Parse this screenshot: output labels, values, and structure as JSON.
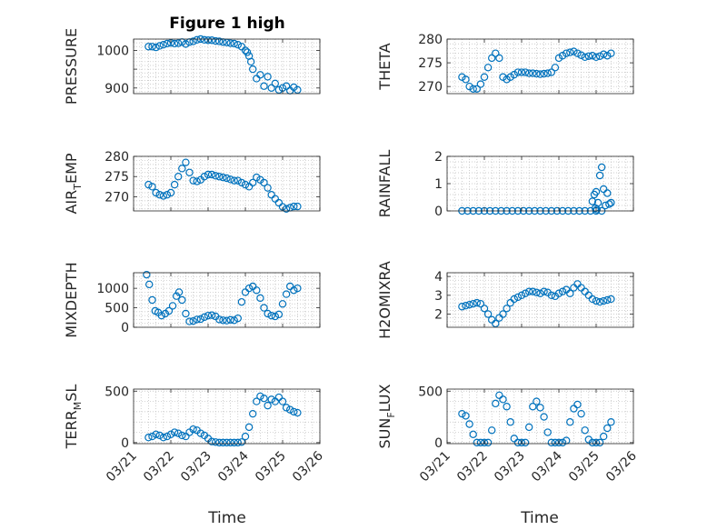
{
  "figure_title": "Figure 1 high",
  "colors": {
    "marker": "#0072BD",
    "axis": "#262626",
    "grid": "#bdbdbd"
  },
  "chart_data": [
    {
      "type": "scatter",
      "ylabel": "PRESSURE",
      "ylim": [
        885,
        1030
      ],
      "yticks": [
        900,
        950,
        1000
      ],
      "ytick_labels": [
        "900",
        "",
        "1000"
      ],
      "xlim": [
        0,
        5
      ],
      "xticks": [
        0,
        1,
        2,
        3,
        4,
        5
      ],
      "grid": true,
      "x": [
        0.4,
        0.5,
        0.6,
        0.7,
        0.8,
        0.9,
        1.0,
        1.1,
        1.2,
        1.3,
        1.4,
        1.5,
        1.6,
        1.7,
        1.8,
        1.9,
        2.0,
        2.1,
        2.2,
        2.3,
        2.4,
        2.5,
        2.6,
        2.7,
        2.8,
        2.9,
        3.0,
        3.05,
        3.1,
        3.15,
        3.2,
        3.3,
        3.4,
        3.5,
        3.6,
        3.7,
        3.8,
        3.9,
        4.0,
        4.1,
        4.2,
        4.3,
        4.4
      ],
      "y": [
        1010,
        1010,
        1008,
        1012,
        1015,
        1018,
        1020,
        1018,
        1019,
        1022,
        1017,
        1022,
        1024,
        1028,
        1030,
        1028,
        1027,
        1027,
        1025,
        1024,
        1022,
        1021,
        1019,
        1018,
        1015,
        1010,
        1000,
        995,
        985,
        970,
        950,
        925,
        935,
        905,
        930,
        900,
        912,
        895,
        900,
        905,
        893,
        902,
        895
      ]
    },
    {
      "type": "scatter",
      "ylabel": "THETA",
      "ylim": [
        268.5,
        280
      ],
      "yticks": [
        270,
        275,
        280
      ],
      "ytick_labels": [
        "270",
        "275",
        "280"
      ],
      "xlim": [
        0,
        5
      ],
      "xticks": [
        0,
        1,
        2,
        3,
        4,
        5
      ],
      "grid": true,
      "x": [
        0.4,
        0.5,
        0.6,
        0.7,
        0.8,
        0.9,
        1.0,
        1.1,
        1.2,
        1.3,
        1.4,
        1.5,
        1.6,
        1.7,
        1.8,
        1.9,
        2.0,
        2.1,
        2.2,
        2.3,
        2.4,
        2.5,
        2.6,
        2.7,
        2.8,
        2.9,
        3.0,
        3.1,
        3.2,
        3.3,
        3.4,
        3.5,
        3.6,
        3.7,
        3.8,
        3.9,
        4.0,
        4.1,
        4.2,
        4.3,
        4.4
      ],
      "y": [
        272,
        271.5,
        270,
        269.5,
        269.5,
        270.5,
        272,
        274,
        276,
        277,
        276,
        272,
        271.5,
        272,
        272.5,
        273,
        273,
        273,
        272.8,
        272.8,
        272.7,
        272.6,
        272.7,
        272.8,
        273,
        274,
        276,
        276.5,
        277,
        277.2,
        277.4,
        277,
        276.6,
        276.2,
        276.4,
        276.5,
        276.2,
        276.4,
        276.8,
        276.5,
        277
      ]
    },
    {
      "type": "scatter",
      "ylabel": "AIR_TEMP",
      "ylim": [
        266.5,
        280
      ],
      "yticks": [
        270,
        275,
        280
      ],
      "ytick_labels": [
        "270",
        "275",
        "280"
      ],
      "xlim": [
        0,
        5
      ],
      "xticks": [
        0,
        1,
        2,
        3,
        4,
        5
      ],
      "grid": true,
      "x": [
        0.4,
        0.5,
        0.6,
        0.7,
        0.8,
        0.9,
        1.0,
        1.1,
        1.2,
        1.3,
        1.4,
        1.5,
        1.6,
        1.7,
        1.8,
        1.9,
        2.0,
        2.1,
        2.2,
        2.3,
        2.4,
        2.5,
        2.6,
        2.7,
        2.8,
        2.9,
        3.0,
        3.1,
        3.2,
        3.3,
        3.4,
        3.5,
        3.6,
        3.7,
        3.8,
        3.9,
        4.0,
        4.1,
        4.2,
        4.3,
        4.4
      ],
      "y": [
        273,
        272.5,
        271,
        270.5,
        270.2,
        270.5,
        271,
        273,
        275,
        277,
        278.5,
        276,
        274,
        273.8,
        274.2,
        275,
        275.5,
        275.5,
        275.2,
        275,
        274.8,
        274.6,
        274.3,
        274,
        274,
        273.5,
        273,
        272.5,
        273.5,
        274.8,
        274.2,
        273.5,
        272.2,
        270.5,
        269.5,
        268.5,
        267.5,
        267,
        267.3,
        267.6,
        267.6
      ]
    },
    {
      "type": "scatter",
      "ylabel": "RAINFALL",
      "ylim": [
        0,
        2
      ],
      "yticks": [
        0,
        1,
        2
      ],
      "ytick_labels": [
        "0",
        "1",
        "2"
      ],
      "xlim": [
        0,
        5
      ],
      "xticks": [
        0,
        1,
        2,
        3,
        4,
        5
      ],
      "grid": true,
      "x": [
        0.4,
        0.55,
        0.7,
        0.85,
        1.0,
        1.15,
        1.3,
        1.45,
        1.6,
        1.75,
        1.9,
        2.05,
        2.2,
        2.35,
        2.5,
        2.65,
        2.8,
        2.95,
        3.1,
        3.25,
        3.4,
        3.55,
        3.7,
        3.85,
        4.0,
        4.15,
        3.9,
        3.95,
        4.0,
        4.05,
        4.1,
        4.15,
        4.2,
        4.25,
        4.3,
        4.35,
        4.4,
        3.98,
        4.02
      ],
      "y": [
        0,
        0,
        0,
        0,
        0,
        0,
        0,
        0,
        0,
        0,
        0,
        0,
        0,
        0,
        0,
        0,
        0,
        0,
        0,
        0,
        0,
        0,
        0,
        0,
        0,
        0,
        0.35,
        0.6,
        0.7,
        0.3,
        1.3,
        1.6,
        0.8,
        0.2,
        0.65,
        0.25,
        0.3,
        0.1,
        0.05
      ]
    },
    {
      "type": "scatter",
      "ylabel": "MIXDEPTH",
      "ylim": [
        0,
        1400
      ],
      "yticks": [
        0,
        500,
        1000
      ],
      "ytick_labels": [
        "0",
        "500",
        "1000"
      ],
      "xlim": [
        0,
        5
      ],
      "xticks": [
        0,
        1,
        2,
        3,
        4,
        5
      ],
      "grid": true,
      "x": [
        0.35,
        0.42,
        0.5,
        0.58,
        0.66,
        0.75,
        0.85,
        0.95,
        1.05,
        1.15,
        1.22,
        1.3,
        1.4,
        1.5,
        1.6,
        1.7,
        1.8,
        1.9,
        2.0,
        2.1,
        2.2,
        2.3,
        2.4,
        2.5,
        2.6,
        2.7,
        2.8,
        2.9,
        3.0,
        3.1,
        3.2,
        3.3,
        3.4,
        3.5,
        3.6,
        3.7,
        3.8,
        3.9,
        4.0,
        4.1,
        4.2,
        4.3,
        4.4
      ],
      "y": [
        1350,
        1100,
        700,
        420,
        380,
        300,
        350,
        420,
        550,
        800,
        900,
        700,
        350,
        150,
        160,
        200,
        210,
        260,
        300,
        310,
        280,
        200,
        180,
        170,
        190,
        180,
        230,
        650,
        900,
        1000,
        1050,
        950,
        750,
        500,
        350,
        300,
        280,
        330,
        600,
        850,
        1050,
        950,
        1000
      ]
    },
    {
      "type": "scatter",
      "ylabel": "H2OMIXRA",
      "ylim": [
        1.3,
        4.2
      ],
      "yticks": [
        2,
        3,
        4
      ],
      "ytick_labels": [
        "2",
        "3",
        "4"
      ],
      "xlim": [
        0,
        5
      ],
      "xticks": [
        0,
        1,
        2,
        3,
        4,
        5
      ],
      "grid": true,
      "x": [
        0.4,
        0.5,
        0.6,
        0.7,
        0.8,
        0.9,
        1.0,
        1.1,
        1.2,
        1.3,
        1.4,
        1.5,
        1.6,
        1.7,
        1.8,
        1.9,
        2.0,
        2.1,
        2.2,
        2.3,
        2.4,
        2.5,
        2.6,
        2.7,
        2.8,
        2.9,
        3.0,
        3.1,
        3.2,
        3.3,
        3.4,
        3.5,
        3.6,
        3.7,
        3.8,
        3.9,
        4.0,
        4.1,
        4.2,
        4.3,
        4.4
      ],
      "y": [
        2.4,
        2.45,
        2.5,
        2.55,
        2.6,
        2.55,
        2.3,
        2.0,
        1.7,
        1.5,
        1.8,
        2.0,
        2.3,
        2.6,
        2.8,
        2.9,
        3.0,
        3.1,
        3.2,
        3.2,
        3.15,
        3.1,
        3.2,
        3.15,
        3.0,
        2.95,
        3.1,
        3.2,
        3.3,
        3.1,
        3.4,
        3.6,
        3.4,
        3.2,
        3.0,
        2.8,
        2.7,
        2.65,
        2.7,
        2.75,
        2.8
      ]
    },
    {
      "type": "scatter",
      "ylabel": "TERR_MSL",
      "ylim": [
        -10,
        520
      ],
      "yticks": [
        0,
        500
      ],
      "ytick_labels": [
        "0",
        "500"
      ],
      "xlim": [
        0,
        5
      ],
      "xticks": [
        0,
        1,
        2,
        3,
        4,
        5
      ],
      "grid": true,
      "x": [
        0.4,
        0.5,
        0.6,
        0.7,
        0.8,
        0.9,
        1.0,
        1.1,
        1.2,
        1.3,
        1.4,
        1.5,
        1.6,
        1.7,
        1.8,
        1.9,
        2.0,
        2.1,
        2.2,
        2.3,
        2.4,
        2.5,
        2.6,
        2.7,
        2.8,
        2.9,
        3.0,
        3.1,
        3.2,
        3.3,
        3.4,
        3.5,
        3.6,
        3.7,
        3.8,
        3.9,
        4.0,
        4.1,
        4.2,
        4.3,
        4.4
      ],
      "y": [
        50,
        60,
        80,
        70,
        50,
        60,
        80,
        100,
        90,
        70,
        60,
        100,
        130,
        120,
        90,
        70,
        40,
        10,
        5,
        0,
        0,
        0,
        0,
        0,
        0,
        5,
        60,
        150,
        280,
        400,
        450,
        430,
        360,
        420,
        400,
        440,
        400,
        340,
        320,
        300,
        290
      ]
    },
    {
      "type": "scatter",
      "ylabel": "SUN_FLUX",
      "ylim": [
        -10,
        520
      ],
      "yticks": [
        0,
        500
      ],
      "ytick_labels": [
        "0",
        "500"
      ],
      "xlim": [
        0,
        5
      ],
      "xticks": [
        0,
        1,
        2,
        3,
        4,
        5
      ],
      "grid": true,
      "x": [
        0.4,
        0.5,
        0.6,
        0.7,
        0.8,
        0.9,
        1.0,
        1.1,
        1.2,
        1.3,
        1.4,
        1.5,
        1.6,
        1.7,
        1.8,
        1.9,
        2.0,
        2.1,
        2.2,
        2.3,
        2.4,
        2.5,
        2.6,
        2.7,
        2.8,
        2.9,
        3.0,
        3.1,
        3.2,
        3.3,
        3.4,
        3.5,
        3.6,
        3.7,
        3.8,
        3.9,
        4.0,
        4.1,
        4.2,
        4.3,
        4.4
      ],
      "y": [
        280,
        260,
        180,
        80,
        0,
        0,
        0,
        0,
        120,
        380,
        460,
        420,
        350,
        200,
        40,
        0,
        0,
        0,
        150,
        350,
        400,
        340,
        250,
        100,
        0,
        0,
        0,
        0,
        20,
        200,
        330,
        370,
        280,
        120,
        30,
        0,
        0,
        0,
        60,
        140,
        200
      ]
    }
  ],
  "x_tick_labels": [
    "03/21",
    "03/22",
    "03/23",
    "03/24",
    "03/25",
    "03/26"
  ],
  "x_labels": {
    "left": "Time",
    "right": "Time"
  }
}
